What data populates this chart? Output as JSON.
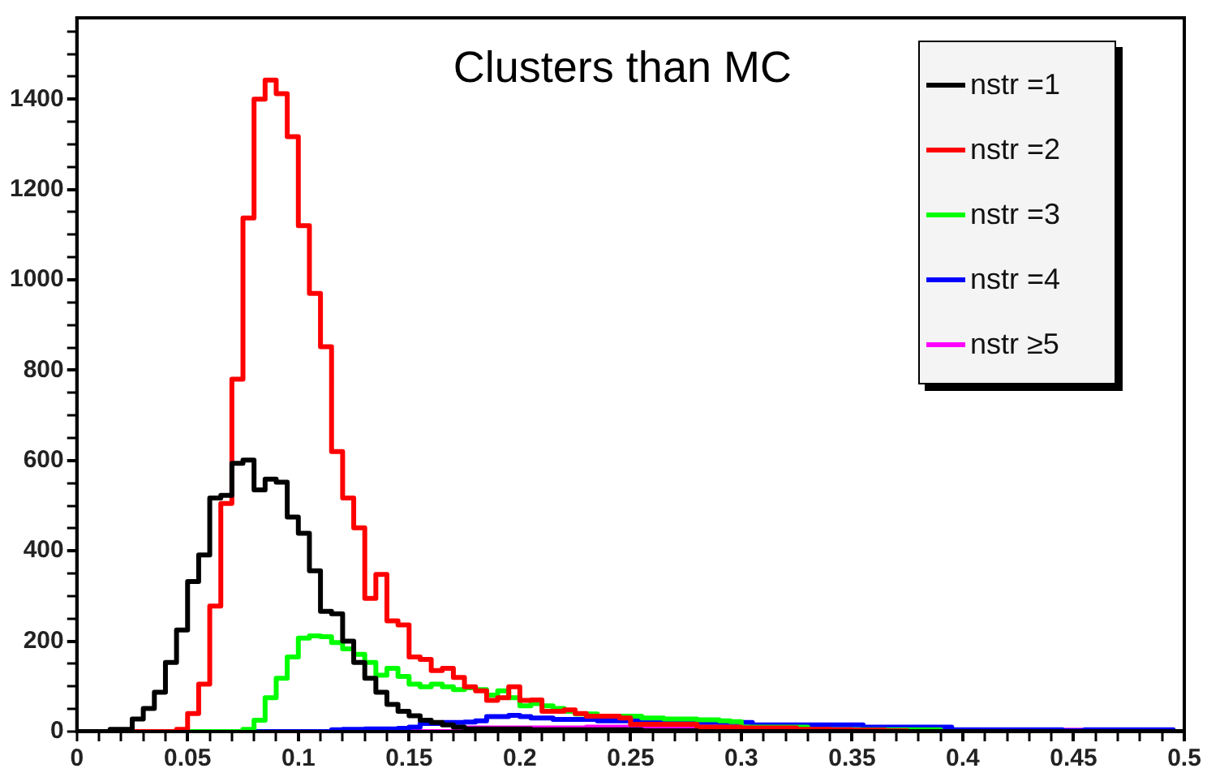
{
  "chart_data": {
    "type": "histogram",
    "title": "Clusters than MC",
    "bins": [
      0,
      0.005,
      0.01,
      0.015,
      0.02,
      0.025,
      0.03,
      0.035,
      0.04,
      0.045,
      0.05,
      0.055,
      0.06,
      0.065,
      0.07,
      0.075,
      0.08,
      0.085,
      0.09,
      0.095,
      0.1,
      0.105,
      0.11,
      0.115,
      0.12,
      0.125,
      0.13,
      0.135,
      0.14,
      0.145,
      0.15,
      0.155,
      0.16,
      0.165,
      0.17,
      0.175,
      0.18,
      0.185,
      0.19,
      0.195,
      0.2,
      0.205,
      0.21,
      0.215,
      0.22,
      0.225,
      0.23,
      0.235,
      0.24,
      0.245,
      0.25,
      0.255,
      0.26,
      0.265,
      0.27,
      0.275,
      0.28,
      0.285,
      0.29,
      0.295,
      0.3,
      0.305,
      0.31,
      0.315,
      0.32,
      0.325,
      0.33,
      0.335,
      0.34,
      0.345,
      0.35,
      0.355,
      0.36,
      0.365,
      0.37,
      0.375,
      0.38,
      0.385,
      0.39,
      0.395,
      0.4,
      0.405,
      0.41,
      0.415,
      0.42,
      0.425,
      0.43,
      0.435,
      0.44,
      0.445,
      0.45,
      0.455,
      0.46,
      0.465,
      0.47,
      0.475,
      0.48,
      0.485,
      0.49,
      0.495,
      0.5
    ],
    "series": [
      {
        "name": "nstr =1",
        "color": "#000000",
        "values": [
          0,
          0,
          0,
          5,
          5,
          28,
          51,
          87,
          153,
          225,
          332,
          391,
          517,
          523,
          594,
          601,
          535,
          559,
          552,
          475,
          439,
          356,
          266,
          261,
          200,
          153,
          118,
          87,
          60,
          45,
          35,
          25,
          20,
          15,
          10,
          6,
          6,
          6,
          6,
          6,
          6,
          4,
          4,
          4,
          4,
          4,
          4,
          4,
          4,
          4,
          4,
          2,
          2,
          2,
          2,
          2,
          0,
          0,
          0,
          0,
          0,
          0,
          0,
          0,
          0,
          0,
          0,
          0,
          0,
          0,
          0,
          0,
          0,
          0,
          0,
          0,
          0,
          0,
          0,
          0,
          0,
          0,
          0,
          0,
          0,
          0,
          0,
          0,
          0,
          0,
          0,
          0,
          0,
          0,
          0,
          0,
          0,
          0,
          0,
          0
        ]
      },
      {
        "name": "nstr =2",
        "color": "#ff0000",
        "values": [
          0,
          0,
          0,
          0,
          0,
          0,
          0,
          0,
          0,
          5,
          40,
          105,
          278,
          505,
          780,
          1137,
          1400,
          1442,
          1412,
          1317,
          1120,
          970,
          852,
          620,
          517,
          451,
          295,
          348,
          245,
          236,
          165,
          160,
          135,
          140,
          120,
          99,
          90,
          69,
          75,
          99,
          69,
          70,
          45,
          45,
          48,
          40,
          34,
          34,
          34,
          30,
          16,
          16,
          16,
          16,
          16,
          16,
          10,
          10,
          10,
          10,
          8,
          8,
          8,
          8,
          8,
          5,
          5,
          5,
          4,
          4,
          3,
          3,
          3,
          2,
          2,
          0,
          0,
          0,
          0,
          0,
          0,
          0,
          0,
          0,
          0,
          0,
          0,
          0,
          0,
          0,
          0,
          0,
          0,
          0,
          0,
          0,
          0,
          0,
          0,
          0
        ]
      },
      {
        "name": "nstr =3",
        "color": "#00ff00",
        "values": [
          0,
          0,
          0,
          0,
          0,
          0,
          0,
          0,
          0,
          0,
          0,
          0,
          0,
          0,
          0,
          5,
          25,
          75,
          118,
          165,
          207,
          212,
          210,
          197,
          183,
          171,
          153,
          125,
          140,
          122,
          105,
          99,
          105,
          99,
          93,
          97,
          93,
          81,
          90,
          75,
          57,
          62,
          57,
          51,
          45,
          39,
          39,
          34,
          34,
          34,
          34,
          30,
          30,
          28,
          28,
          28,
          26,
          26,
          24,
          22,
          10,
          10,
          10,
          10,
          10,
          10,
          4,
          4,
          4,
          4,
          4,
          4,
          4,
          4,
          4,
          4,
          4,
          4,
          0,
          0,
          0,
          0,
          0,
          0,
          0,
          0,
          0,
          0,
          0,
          0,
          0,
          0,
          0,
          0,
          0,
          0,
          0,
          0,
          0,
          0
        ]
      },
      {
        "name": "nstr =4",
        "color": "#0000ff",
        "values": [
          0,
          0,
          0,
          0,
          0,
          0,
          0,
          0,
          0,
          0,
          0,
          0,
          0,
          0,
          0,
          0,
          0,
          0,
          0,
          0,
          0,
          0,
          0,
          4,
          5,
          5,
          6,
          6,
          6,
          7,
          10,
          18,
          18,
          20,
          20,
          21,
          24,
          33,
          33,
          36,
          33,
          30,
          30,
          27,
          27,
          27,
          27,
          24,
          24,
          24,
          24,
          20,
          20,
          20,
          20,
          20,
          20,
          20,
          20,
          20,
          20,
          15,
          15,
          15,
          15,
          15,
          15,
          15,
          15,
          15,
          15,
          10,
          10,
          10,
          10,
          10,
          10,
          10,
          10,
          4,
          4,
          4,
          4,
          4,
          4,
          4,
          4,
          4,
          4,
          2,
          2,
          4,
          4,
          4,
          4,
          4,
          4,
          4,
          4,
          0
        ]
      },
      {
        "name": "nstr ≥5",
        "color": "#ff00ff",
        "values": [
          0,
          0,
          0,
          0,
          0,
          0,
          0,
          0,
          0,
          0,
          0,
          0,
          0,
          0,
          0,
          0,
          0,
          0,
          0,
          0,
          0,
          0,
          0,
          0,
          0,
          0,
          0,
          0,
          0,
          0,
          0,
          0,
          0,
          0,
          0,
          8,
          8,
          8,
          8,
          8,
          8,
          8,
          8,
          8,
          8,
          8,
          10,
          10,
          10,
          10,
          10,
          10,
          10,
          10,
          10,
          10,
          6,
          6,
          6,
          6,
          6,
          3,
          3,
          3,
          3,
          3,
          3,
          3,
          3,
          3,
          3,
          3,
          3,
          3,
          3,
          3,
          3,
          3,
          3,
          3,
          3,
          3,
          3,
          3,
          3,
          3,
          3,
          3,
          3,
          3,
          3,
          3,
          3,
          3,
          3,
          3,
          3,
          3,
          3,
          0
        ]
      }
    ],
    "xlim": [
      0,
      0.5
    ],
    "xticks": [
      0,
      {
        "value": 0.01,
        "label": null
      },
      {
        "value": 0.02,
        "label": null
      },
      {
        "value": 0.03,
        "label": null
      },
      {
        "value": 0.04,
        "label": null
      },
      0.05,
      {
        "value": 0.06,
        "label": null
      },
      {
        "value": 0.07,
        "label": null
      },
      {
        "value": 0.08,
        "label": null
      },
      {
        "value": 0.09,
        "label": null
      },
      0.1,
      {
        "value": 0.11,
        "label": null
      },
      {
        "value": 0.12,
        "label": null
      },
      {
        "value": 0.13,
        "label": null
      },
      {
        "value": 0.14,
        "label": null
      },
      0.15,
      {
        "value": 0.16,
        "label": null
      },
      {
        "value": 0.17,
        "label": null
      },
      {
        "value": 0.18,
        "label": null
      },
      {
        "value": 0.19,
        "label": null
      },
      0.2,
      {
        "value": 0.21,
        "label": null
      },
      {
        "value": 0.22,
        "label": null
      },
      {
        "value": 0.23,
        "label": null
      },
      {
        "value": 0.24,
        "label": null
      },
      0.25,
      {
        "value": 0.26,
        "label": null
      },
      {
        "value": 0.27,
        "label": null
      },
      {
        "value": 0.28,
        "label": null
      },
      {
        "value": 0.29,
        "label": null
      },
      0.3,
      {
        "value": 0.31,
        "label": null
      },
      {
        "value": 0.32,
        "label": null
      },
      {
        "value": 0.33,
        "label": null
      },
      {
        "value": 0.34,
        "label": null
      },
      0.35,
      {
        "value": 0.36,
        "label": null
      },
      {
        "value": 0.37,
        "label": null
      },
      {
        "value": 0.38,
        "label": null
      },
      {
        "value": 0.39,
        "label": null
      },
      0.4,
      {
        "value": 0.41,
        "label": null
      },
      {
        "value": 0.42,
        "label": null
      },
      {
        "value": 0.43,
        "label": null
      },
      {
        "value": 0.44,
        "label": null
      },
      0.45,
      {
        "value": 0.46,
        "label": null
      },
      {
        "value": 0.47,
        "label": null
      },
      {
        "value": 0.48,
        "label": null
      },
      {
        "value": 0.49,
        "label": null
      },
      0.5
    ],
    "ylim": [
      0,
      1580
    ],
    "yticks": [
      0,
      {
        "value": 50,
        "label": null
      },
      {
        "value": 100,
        "label": null
      },
      {
        "value": 150,
        "label": null
      },
      200,
      {
        "value": 250,
        "label": null
      },
      {
        "value": 300,
        "label": null
      },
      {
        "value": 350,
        "label": null
      },
      400,
      {
        "value": 450,
        "label": null
      },
      {
        "value": 500,
        "label": null
      },
      {
        "value": 550,
        "label": null
      },
      600,
      {
        "value": 650,
        "label": null
      },
      {
        "value": 700,
        "label": null
      },
      {
        "value": 750,
        "label": null
      },
      800,
      {
        "value": 850,
        "label": null
      },
      {
        "value": 900,
        "label": null
      },
      {
        "value": 950,
        "label": null
      },
      1000,
      {
        "value": 1050,
        "label": null
      },
      {
        "value": 1100,
        "label": null
      },
      {
        "value": 1150,
        "label": null
      },
      1200,
      {
        "value": 1250,
        "label": null
      },
      {
        "value": 1300,
        "label": null
      },
      {
        "value": 1350,
        "label": null
      },
      1400,
      {
        "value": 1450,
        "label": null
      },
      {
        "value": 1500,
        "label": null
      },
      {
        "value": 1550,
        "label": null
      }
    ],
    "grid": false,
    "legend": "top right"
  }
}
